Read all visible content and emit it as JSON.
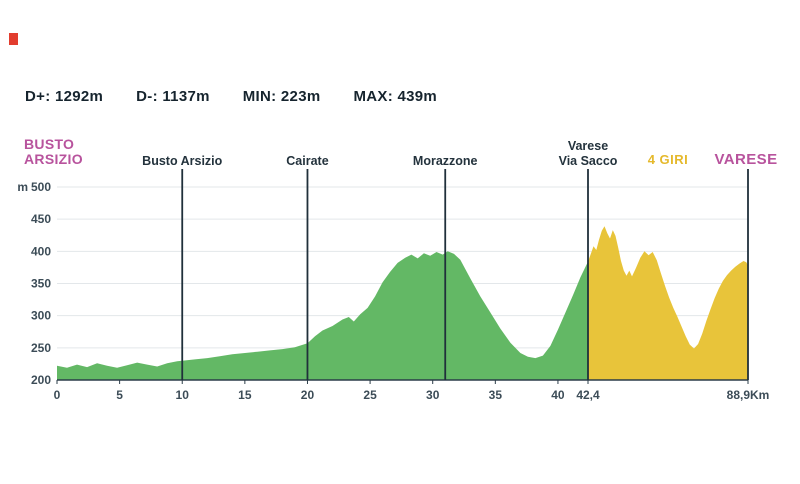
{
  "stats": [
    {
      "label": "D+: 1292m"
    },
    {
      "label": "D-: 1137m"
    },
    {
      "label": "MIN: 223m"
    },
    {
      "label": "MAX: 439m"
    }
  ],
  "route_labels": {
    "start": "BUSTO\nARSIZIO",
    "giri": "4 GIRI",
    "end": "VARESE"
  },
  "waypoints": [
    {
      "text": "Busto Arsizio",
      "km": 10
    },
    {
      "text": "Cairate",
      "km": 20
    },
    {
      "text": "Morazzone",
      "km": 31
    },
    {
      "text": "Varese\nVia Sacco",
      "km": 42.4
    }
  ],
  "colors": {
    "green_area": "#63b865",
    "yellow_area": "#e8c43a",
    "magenta_text": "#b8539d",
    "gold_text": "#e5b92c",
    "dark_text": "#16242e",
    "marker_line": "#20303b",
    "gridline": "#e3e7ea",
    "red_square": "#e23d2e"
  },
  "chart_data": {
    "type": "area",
    "title": "",
    "xlabel": "Km",
    "ylabel": "m",
    "ylim": [
      200,
      500
    ],
    "grid": "horizontal",
    "legend": "none",
    "y_ticks": [
      200,
      250,
      300,
      350,
      400,
      450,
      500
    ],
    "x_split_km": 42.4,
    "x_end_km": 88.9,
    "x_ticks": [
      {
        "label": "0",
        "km": 0
      },
      {
        "label": "5",
        "km": 5
      },
      {
        "label": "10",
        "km": 10
      },
      {
        "label": "15",
        "km": 15
      },
      {
        "label": "20",
        "km": 20
      },
      {
        "label": "25",
        "km": 25
      },
      {
        "label": "30",
        "km": 30
      },
      {
        "label": "35",
        "km": 35
      },
      {
        "label": "40",
        "km": 40
      },
      {
        "label": "42,4",
        "km": 42.4
      },
      {
        "label": "88,9Km",
        "km": 88.9
      }
    ],
    "markers": [
      {
        "label": "Busto Arsizio",
        "km": 10
      },
      {
        "label": "Cairate",
        "km": 20
      },
      {
        "label": "Morazzone",
        "km": 31
      },
      {
        "label": "Varese Via Sacco",
        "km": 42.4
      },
      {
        "label": "VARESE",
        "km": 88.9
      }
    ],
    "series": [
      {
        "name": "Busto Arsizio - Varese Via Sacco",
        "color": "#63b865",
        "points": [
          [
            0,
            222
          ],
          [
            0.8,
            219
          ],
          [
            1.6,
            224
          ],
          [
            2.4,
            220
          ],
          [
            3.2,
            226
          ],
          [
            4,
            222
          ],
          [
            4.8,
            219
          ],
          [
            5.6,
            223
          ],
          [
            6.4,
            227
          ],
          [
            7.2,
            224
          ],
          [
            8,
            221
          ],
          [
            8.8,
            226
          ],
          [
            9.6,
            229
          ],
          [
            10,
            230
          ],
          [
            11,
            232
          ],
          [
            12,
            234
          ],
          [
            13,
            237
          ],
          [
            14,
            240
          ],
          [
            15,
            242
          ],
          [
            16,
            244
          ],
          [
            17,
            246
          ],
          [
            18,
            248
          ],
          [
            19,
            251
          ],
          [
            20,
            257
          ],
          [
            20.6,
            268
          ],
          [
            21.2,
            277
          ],
          [
            22,
            284
          ],
          [
            22.8,
            294
          ],
          [
            23.3,
            298
          ],
          [
            23.7,
            291
          ],
          [
            24.2,
            302
          ],
          [
            24.8,
            312
          ],
          [
            25.4,
            330
          ],
          [
            26,
            352
          ],
          [
            26.6,
            368
          ],
          [
            27.2,
            382
          ],
          [
            27.8,
            390
          ],
          [
            28.3,
            395
          ],
          [
            28.8,
            389
          ],
          [
            29.3,
            397
          ],
          [
            29.8,
            393
          ],
          [
            30.3,
            399
          ],
          [
            30.8,
            395
          ],
          [
            31.2,
            400
          ],
          [
            31.7,
            396
          ],
          [
            32.2,
            387
          ],
          [
            33,
            358
          ],
          [
            33.8,
            330
          ],
          [
            34.6,
            305
          ],
          [
            35.4,
            280
          ],
          [
            36.2,
            258
          ],
          [
            37,
            242
          ],
          [
            37.6,
            236
          ],
          [
            38.2,
            234
          ],
          [
            38.8,
            238
          ],
          [
            39.4,
            253
          ],
          [
            40,
            278
          ],
          [
            40.6,
            305
          ],
          [
            41.2,
            332
          ],
          [
            41.8,
            360
          ],
          [
            42.4,
            384
          ]
        ]
      },
      {
        "name": "4 Giri - Varese",
        "color": "#e8c43a",
        "points": [
          [
            42.4,
            384
          ],
          [
            43.2,
            396
          ],
          [
            44,
            408
          ],
          [
            44.8,
            402
          ],
          [
            45.6,
            418
          ],
          [
            46.4,
            432
          ],
          [
            47.2,
            439
          ],
          [
            48,
            428
          ],
          [
            48.8,
            420
          ],
          [
            49.6,
            433
          ],
          [
            50.4,
            424
          ],
          [
            51.2,
            405
          ],
          [
            52,
            385
          ],
          [
            52.8,
            370
          ],
          [
            53.6,
            362
          ],
          [
            54.4,
            370
          ],
          [
            55.2,
            361
          ],
          [
            56.4,
            375
          ],
          [
            57.6,
            390
          ],
          [
            58.8,
            400
          ],
          [
            60,
            394
          ],
          [
            61.2,
            399
          ],
          [
            62.4,
            386
          ],
          [
            63.6,
            366
          ],
          [
            64.8,
            346
          ],
          [
            66,
            328
          ],
          [
            67.2,
            312
          ],
          [
            68.4,
            298
          ],
          [
            69.6,
            283
          ],
          [
            70.8,
            268
          ],
          [
            72,
            255
          ],
          [
            73.2,
            249
          ],
          [
            74.4,
            256
          ],
          [
            75.6,
            272
          ],
          [
            76.8,
            292
          ],
          [
            78,
            310
          ],
          [
            79.2,
            327
          ],
          [
            80.4,
            342
          ],
          [
            81.6,
            354
          ],
          [
            82.8,
            363
          ],
          [
            84,
            370
          ],
          [
            85.2,
            376
          ],
          [
            86.4,
            381
          ],
          [
            87.6,
            385
          ],
          [
            88.4,
            383
          ],
          [
            88.9,
            378
          ]
        ]
      }
    ]
  }
}
